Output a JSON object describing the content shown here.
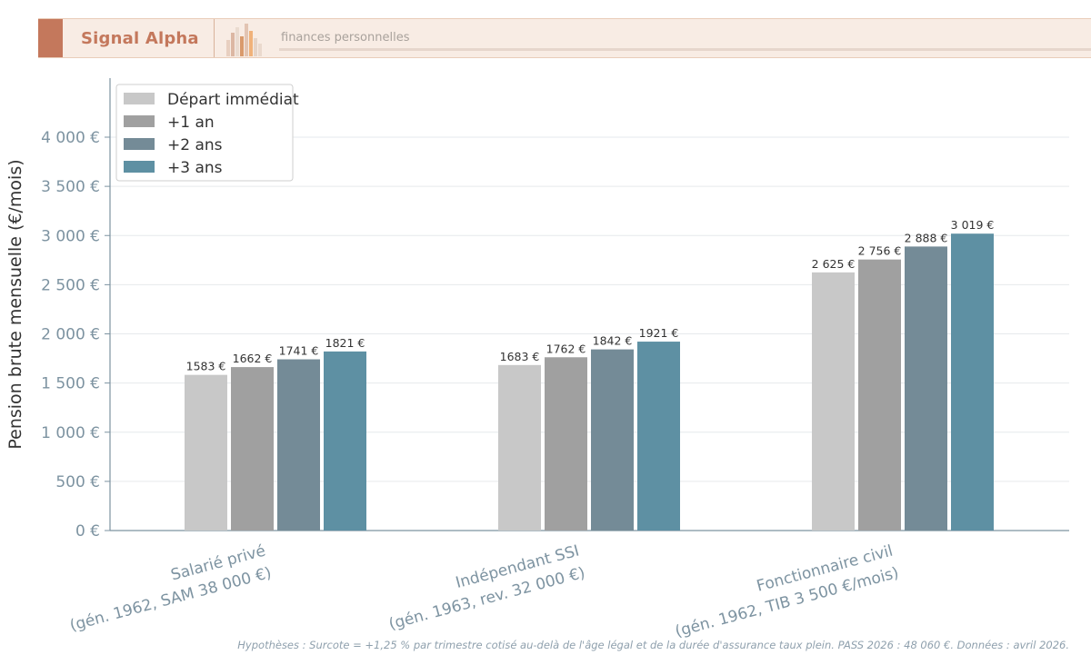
{
  "brand": {
    "name": "Signal Alpha",
    "tagline": "finances personnelles",
    "colors": {
      "accent": "#c4785c",
      "bar_bg": "#f8ece4"
    }
  },
  "chart_data": {
    "type": "bar",
    "ylabel": "Pension brute mensuelle (€/mois)",
    "xlabel": "",
    "ylim": [
      0,
      4600
    ],
    "yticks": [
      "0 €",
      "500 €",
      "1 000 €",
      "1 500 €",
      "2 000 €",
      "2 500 €",
      "3 000 €",
      "3 500 €",
      "4 000 €"
    ],
    "grid": true,
    "legend_position": "top-left",
    "categories": [
      [
        "Salarié privé",
        "(gén. 1962, SAM 38 000 €)"
      ],
      [
        "Indépendant SSI",
        "(gén. 1963, rev. 32 000 €)"
      ],
      [
        "Fonctionnaire civil",
        "(gén. 1962, TIB 3 500 €/mois)"
      ]
    ],
    "series": [
      {
        "name": "Départ immédiat",
        "color": "#c8c8c8",
        "values": [
          1583,
          1683,
          2625
        ],
        "labels": [
          "1583 €",
          "1683 €",
          "2 625 €"
        ]
      },
      {
        "name": "+1 an",
        "color": "#a0a0a0",
        "values": [
          1662,
          1762,
          2756
        ],
        "labels": [
          "1662 €",
          "1762 €",
          "2 756 €"
        ]
      },
      {
        "name": "+2 ans",
        "color": "#748b97",
        "values": [
          1741,
          1842,
          2888
        ],
        "labels": [
          "1741 €",
          "1842 €",
          "2 888 €"
        ]
      },
      {
        "name": "+3 ans",
        "color": "#5e90a3",
        "values": [
          1821,
          1921,
          3019
        ],
        "labels": [
          "1821 €",
          "1921 €",
          "3 019 €"
        ]
      }
    ]
  },
  "footnote": "Hypothèses : Surcote = +1,25 % par trimestre cotisé au-delà de l'âge légal et de la durée d'assurance taux plein. PASS 2026 : 48 060 €. Données : avril 2026."
}
